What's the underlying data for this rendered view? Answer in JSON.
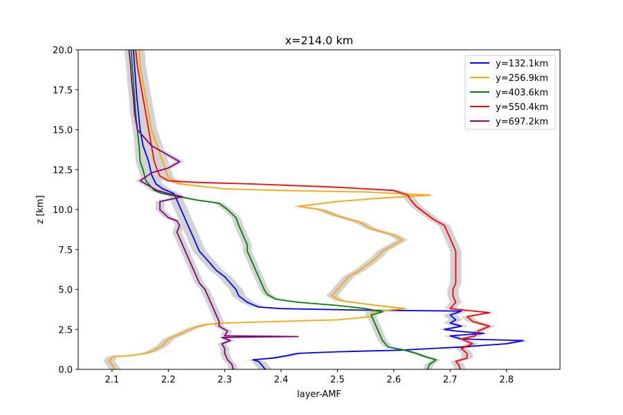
{
  "chart_data": {
    "type": "line",
    "title": "x=214.0 km",
    "xlabel": "layer-AMF",
    "ylabel": "z [km]",
    "xlim": [
      2.04,
      2.895
    ],
    "ylim": [
      0,
      20
    ],
    "xticks": [
      2.1,
      2.2,
      2.3,
      2.4,
      2.5,
      2.6,
      2.7,
      2.8
    ],
    "xtick_labels": [
      "2.1",
      "2.2",
      "2.3",
      "2.4",
      "2.5",
      "2.6",
      "2.7",
      "2.8"
    ],
    "yticks": [
      0,
      2.5,
      5,
      7.5,
      10,
      12.5,
      15,
      17.5,
      20
    ],
    "ytick_labels": [
      "0.0",
      "2.5",
      "5.0",
      "7.5",
      "10.0",
      "12.5",
      "15.0",
      "17.5",
      "20.0"
    ],
    "grid": false,
    "legend_position": "top-right",
    "band_color": "#d3d3d3",
    "series": [
      {
        "name": "y=132.1km",
        "color": "#0000ff",
        "band_halfwidth": 0.012,
        "points": [
          [
            2.372,
            0
          ],
          [
            2.365,
            0.3
          ],
          [
            2.36,
            0.5
          ],
          [
            2.35,
            0.6
          ],
          [
            2.385,
            0.7
          ],
          [
            2.41,
            0.85
          ],
          [
            2.43,
            1.0
          ],
          [
            2.5,
            1.1
          ],
          [
            2.61,
            1.2
          ],
          [
            2.72,
            1.4
          ],
          [
            2.8,
            1.6
          ],
          [
            2.83,
            1.8
          ],
          [
            2.72,
            1.9
          ],
          [
            2.7,
            2.1
          ],
          [
            2.76,
            2.25
          ],
          [
            2.71,
            2.4
          ],
          [
            2.69,
            2.5
          ],
          [
            2.72,
            2.7
          ],
          [
            2.7,
            2.9
          ],
          [
            2.71,
            3.1
          ],
          [
            2.7,
            3.4
          ],
          [
            2.72,
            3.65
          ],
          [
            2.55,
            3.7
          ],
          [
            2.4,
            3.8
          ],
          [
            2.36,
            3.9
          ],
          [
            2.34,
            4.2
          ],
          [
            2.325,
            4.6
          ],
          [
            2.32,
            5.0
          ],
          [
            2.31,
            5.4
          ],
          [
            2.3,
            5.8
          ],
          [
            2.285,
            6.2
          ],
          [
            2.275,
            6.6
          ],
          [
            2.265,
            7.0
          ],
          [
            2.255,
            7.4
          ],
          [
            2.25,
            7.8
          ],
          [
            2.245,
            8.2
          ],
          [
            2.24,
            8.6
          ],
          [
            2.235,
            9.0
          ],
          [
            2.23,
            9.4
          ],
          [
            2.225,
            9.8
          ],
          [
            2.22,
            10.2
          ],
          [
            2.215,
            10.6
          ],
          [
            2.21,
            11.0
          ],
          [
            2.19,
            11.3
          ],
          [
            2.178,
            11.6
          ],
          [
            2.17,
            12.2
          ],
          [
            2.165,
            13.0
          ],
          [
            2.16,
            13.5
          ],
          [
            2.155,
            14.0
          ],
          [
            2.15,
            15.0
          ],
          [
            2.147,
            16.0
          ],
          [
            2.144,
            17.0
          ],
          [
            2.142,
            18.0
          ],
          [
            2.14,
            19.0
          ],
          [
            2.138,
            20.0
          ]
        ]
      },
      {
        "name": "y=256.9km",
        "color": "#ffa500",
        "band_halfwidth": 0.01,
        "points": [
          [
            2.105,
            0
          ],
          [
            2.102,
            0.2
          ],
          [
            2.095,
            0.5
          ],
          [
            2.1,
            0.8
          ],
          [
            2.13,
            0.85
          ],
          [
            2.16,
            1.0
          ],
          [
            2.175,
            1.2
          ],
          [
            2.19,
            1.5
          ],
          [
            2.2,
            1.9
          ],
          [
            2.22,
            2.2
          ],
          [
            2.245,
            2.6
          ],
          [
            2.265,
            2.8
          ],
          [
            2.3,
            2.9
          ],
          [
            2.4,
            3.0
          ],
          [
            2.5,
            3.1
          ],
          [
            2.56,
            3.3
          ],
          [
            2.56,
            3.6
          ],
          [
            2.62,
            3.8
          ],
          [
            2.57,
            4.0
          ],
          [
            2.505,
            4.3
          ],
          [
            2.49,
            4.6
          ],
          [
            2.5,
            5.0
          ],
          [
            2.51,
            5.4
          ],
          [
            2.52,
            5.8
          ],
          [
            2.54,
            6.2
          ],
          [
            2.555,
            6.6
          ],
          [
            2.57,
            7.0
          ],
          [
            2.58,
            7.4
          ],
          [
            2.6,
            7.8
          ],
          [
            2.615,
            8.1
          ],
          [
            2.6,
            8.4
          ],
          [
            2.56,
            8.8
          ],
          [
            2.54,
            9.2
          ],
          [
            2.5,
            9.6
          ],
          [
            2.47,
            10.0
          ],
          [
            2.43,
            10.2
          ],
          [
            2.5,
            10.5
          ],
          [
            2.57,
            10.7
          ],
          [
            2.665,
            10.9
          ],
          [
            2.55,
            11.1
          ],
          [
            2.4,
            11.2
          ],
          [
            2.3,
            11.3
          ],
          [
            2.22,
            11.6
          ],
          [
            2.2,
            12.0
          ],
          [
            2.195,
            12.5
          ],
          [
            2.19,
            13.0
          ],
          [
            2.18,
            14.0
          ],
          [
            2.17,
            15.0
          ],
          [
            2.165,
            16.0
          ],
          [
            2.16,
            17.0
          ],
          [
            2.155,
            18.0
          ],
          [
            2.15,
            19.0
          ],
          [
            2.148,
            20.0
          ]
        ]
      },
      {
        "name": "y=403.6km",
        "color": "#008000",
        "band_halfwidth": 0.008,
        "points": [
          [
            2.66,
            0
          ],
          [
            2.663,
            0.3
          ],
          [
            2.675,
            0.6
          ],
          [
            2.655,
            0.8
          ],
          [
            2.64,
            1.0
          ],
          [
            2.62,
            1.2
          ],
          [
            2.59,
            1.4
          ],
          [
            2.58,
            1.8
          ],
          [
            2.575,
            2.2
          ],
          [
            2.57,
            2.6
          ],
          [
            2.565,
            3.0
          ],
          [
            2.56,
            3.4
          ],
          [
            2.58,
            3.6
          ],
          [
            2.55,
            3.8
          ],
          [
            2.5,
            4.0
          ],
          [
            2.43,
            4.2
          ],
          [
            2.39,
            4.4
          ],
          [
            2.375,
            4.7
          ],
          [
            2.37,
            5.0
          ],
          [
            2.365,
            5.4
          ],
          [
            2.36,
            5.8
          ],
          [
            2.355,
            6.2
          ],
          [
            2.35,
            6.6
          ],
          [
            2.345,
            7.0
          ],
          [
            2.34,
            7.4
          ],
          [
            2.34,
            7.8
          ],
          [
            2.335,
            8.2
          ],
          [
            2.33,
            8.6
          ],
          [
            2.325,
            9.0
          ],
          [
            2.32,
            9.5
          ],
          [
            2.305,
            10.0
          ],
          [
            2.29,
            10.4
          ],
          [
            2.25,
            10.6
          ],
          [
            2.22,
            10.8
          ],
          [
            2.19,
            11.0
          ],
          [
            2.175,
            11.2
          ],
          [
            2.16,
            11.8
          ],
          [
            2.155,
            12.5
          ],
          [
            2.15,
            13.0
          ],
          [
            2.148,
            14.0
          ],
          [
            2.145,
            15.0
          ],
          [
            2.142,
            16.0
          ],
          [
            2.14,
            17.0
          ],
          [
            2.138,
            18.0
          ],
          [
            2.136,
            19.0
          ],
          [
            2.134,
            20.0
          ]
        ]
      },
      {
        "name": "y=550.4km",
        "color": "#ff0000",
        "band_halfwidth": 0.01,
        "points": [
          [
            2.718,
            0
          ],
          [
            2.715,
            0.3
          ],
          [
            2.71,
            0.5
          ],
          [
            2.73,
            0.7
          ],
          [
            2.73,
            1.0
          ],
          [
            2.72,
            1.3
          ],
          [
            2.74,
            1.6
          ],
          [
            2.72,
            1.9
          ],
          [
            2.745,
            2.1
          ],
          [
            2.75,
            2.4
          ],
          [
            2.77,
            2.7
          ],
          [
            2.74,
            3.0
          ],
          [
            2.73,
            3.3
          ],
          [
            2.77,
            3.55
          ],
          [
            2.7,
            3.8
          ],
          [
            2.71,
            4.2
          ],
          [
            2.705,
            4.6
          ],
          [
            2.705,
            5.0
          ],
          [
            2.71,
            5.4
          ],
          [
            2.71,
            5.8
          ],
          [
            2.71,
            6.2
          ],
          [
            2.71,
            6.6
          ],
          [
            2.71,
            7.0
          ],
          [
            2.71,
            7.4
          ],
          [
            2.705,
            7.8
          ],
          [
            2.7,
            8.2
          ],
          [
            2.695,
            8.6
          ],
          [
            2.69,
            9.0
          ],
          [
            2.67,
            9.4
          ],
          [
            2.655,
            9.8
          ],
          [
            2.64,
            10.2
          ],
          [
            2.63,
            10.6
          ],
          [
            2.625,
            10.9
          ],
          [
            2.6,
            11.2
          ],
          [
            2.5,
            11.4
          ],
          [
            2.35,
            11.6
          ],
          [
            2.25,
            11.7
          ],
          [
            2.2,
            11.8
          ],
          [
            2.185,
            12.1
          ],
          [
            2.18,
            12.5
          ],
          [
            2.175,
            13.0
          ],
          [
            2.17,
            14.0
          ],
          [
            2.165,
            15.0
          ],
          [
            2.16,
            16.0
          ],
          [
            2.155,
            17.0
          ],
          [
            2.15,
            18.0
          ],
          [
            2.145,
            19.0
          ],
          [
            2.142,
            20.0
          ]
        ]
      },
      {
        "name": "y=697.2km",
        "color": "#800080",
        "band_halfwidth": 0.008,
        "points": [
          [
            2.315,
            0
          ],
          [
            2.313,
            0.3
          ],
          [
            2.305,
            0.6
          ],
          [
            2.3,
            1.0
          ],
          [
            2.3,
            1.3
          ],
          [
            2.295,
            1.6
          ],
          [
            2.31,
            1.8
          ],
          [
            2.295,
            2.0
          ],
          [
            2.43,
            2.05
          ],
          [
            2.3,
            2.1
          ],
          [
            2.305,
            2.4
          ],
          [
            2.29,
            2.7
          ],
          [
            2.29,
            3.0
          ],
          [
            2.285,
            3.4
          ],
          [
            2.28,
            3.8
          ],
          [
            2.275,
            4.2
          ],
          [
            2.27,
            4.6
          ],
          [
            2.265,
            5.0
          ],
          [
            2.255,
            5.4
          ],
          [
            2.25,
            5.8
          ],
          [
            2.245,
            6.2
          ],
          [
            2.24,
            6.6
          ],
          [
            2.235,
            7.0
          ],
          [
            2.23,
            7.4
          ],
          [
            2.225,
            7.8
          ],
          [
            2.22,
            8.2
          ],
          [
            2.215,
            8.6
          ],
          [
            2.22,
            9.0
          ],
          [
            2.215,
            9.3
          ],
          [
            2.2,
            9.5
          ],
          [
            2.185,
            10.0
          ],
          [
            2.185,
            10.5
          ],
          [
            2.225,
            10.8
          ],
          [
            2.2,
            11.0
          ],
          [
            2.18,
            11.2
          ],
          [
            2.15,
            11.8
          ],
          [
            2.17,
            12.3
          ],
          [
            2.2,
            12.6
          ],
          [
            2.22,
            13.0
          ],
          [
            2.19,
            13.6
          ],
          [
            2.17,
            14.0
          ],
          [
            2.145,
            15.0
          ],
          [
            2.14,
            16.0
          ],
          [
            2.138,
            17.0
          ],
          [
            2.135,
            18.0
          ],
          [
            2.133,
            19.0
          ],
          [
            2.13,
            20.0
          ]
        ]
      }
    ]
  }
}
